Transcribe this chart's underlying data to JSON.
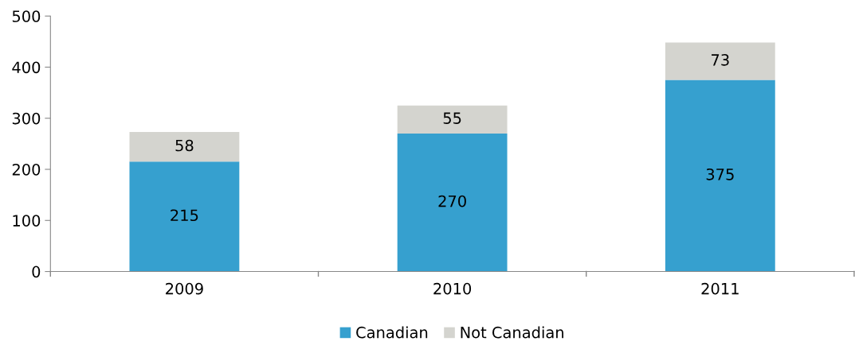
{
  "chart_data": {
    "type": "bar",
    "stacked": true,
    "categories": [
      "2009",
      "2010",
      "2011"
    ],
    "series": [
      {
        "name": "Canadian",
        "color": "#36a0cf",
        "values": [
          215,
          270,
          375
        ]
      },
      {
        "name": "Not Canadian",
        "color": "#d4d4cf",
        "values": [
          58,
          55,
          73
        ]
      }
    ],
    "ylim": [
      0,
      500
    ],
    "yticks": [
      0,
      100,
      200,
      300,
      400,
      500
    ],
    "data_labels": true,
    "grid": false,
    "legend": "bottom"
  }
}
